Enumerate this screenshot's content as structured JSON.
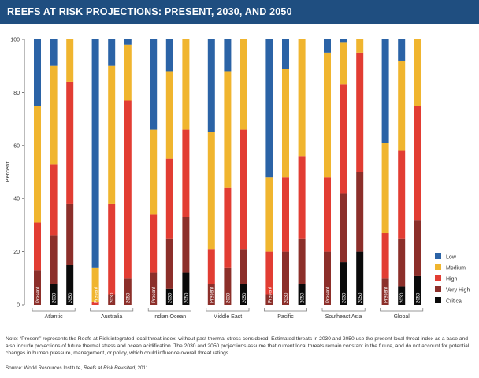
{
  "header": {
    "title": "REEFS AT RISK PROJECTIONS: PRESENT, 2030, AND 2050",
    "background": "#1f4e80"
  },
  "footer": {
    "note": "Note: “Present” represents the Reefs at Risk integrated local threat index, without past thermal stress considered. Estimated threats in 2030 and 2050 use the present local threat index as a base and also include projections of future thermal stress and ocean acidification. The 2030 and 2050 projections assume that current local threats remain constant in the future, and do not account for potential changes in human pressure, management, or policy, which could influence overall threat ratings.",
    "source_prefix": "Source: World Resources Institute, ",
    "source_title": "Reefs at Risk Revisited",
    "source_suffix": ", 2011."
  },
  "chart_data": {
    "type": "bar",
    "stacked": true,
    "ylabel": "Percent",
    "ylim": [
      0,
      100
    ],
    "yticks": [
      0,
      20,
      40,
      60,
      80,
      100
    ],
    "grid": false,
    "legend_position": "bottom-right",
    "groups": [
      "Atlantic",
      "Australia",
      "Indian Ocean",
      "Middle East",
      "Pacific",
      "Southeast Asia",
      "Global"
    ],
    "bar_labels": [
      "Present",
      "2030",
      "2050"
    ],
    "series": [
      {
        "name": "Critical",
        "color": "#0a0a0a",
        "values": [
          [
            0,
            8,
            15
          ],
          [
            0,
            0,
            0
          ],
          [
            0,
            6,
            12
          ],
          [
            0,
            0,
            8
          ],
          [
            0,
            0,
            8
          ],
          [
            0,
            16,
            20
          ],
          [
            0,
            7,
            11
          ]
        ]
      },
      {
        "name": "Very High",
        "color": "#8c2f2a",
        "values": [
          [
            13,
            18,
            23
          ],
          [
            0,
            4,
            10
          ],
          [
            12,
            19,
            21
          ],
          [
            8,
            14,
            13
          ],
          [
            4,
            20,
            17
          ],
          [
            20,
            26,
            30
          ],
          [
            10,
            18,
            21
          ]
        ]
      },
      {
        "name": "High",
        "color": "#e23d33",
        "values": [
          [
            18,
            27,
            46
          ],
          [
            1,
            34,
            67
          ],
          [
            22,
            30,
            33
          ],
          [
            13,
            30,
            45
          ],
          [
            16,
            28,
            31
          ],
          [
            28,
            41,
            45
          ],
          [
            17,
            33,
            43
          ]
        ]
      },
      {
        "name": "Medium",
        "color": "#f0b52f",
        "values": [
          [
            44,
            37,
            16
          ],
          [
            13,
            52,
            21
          ],
          [
            32,
            33,
            34
          ],
          [
            44,
            44,
            34
          ],
          [
            28,
            41,
            44
          ],
          [
            47,
            16,
            5
          ],
          [
            34,
            34,
            25
          ]
        ]
      },
      {
        "name": "Low",
        "color": "#2b63a6",
        "values": [
          [
            25,
            10,
            0
          ],
          [
            86,
            10,
            2
          ],
          [
            34,
            12,
            0
          ],
          [
            35,
            12,
            0
          ],
          [
            52,
            11,
            0
          ],
          [
            5,
            1,
            0
          ],
          [
            39,
            8,
            0
          ]
        ]
      }
    ]
  }
}
